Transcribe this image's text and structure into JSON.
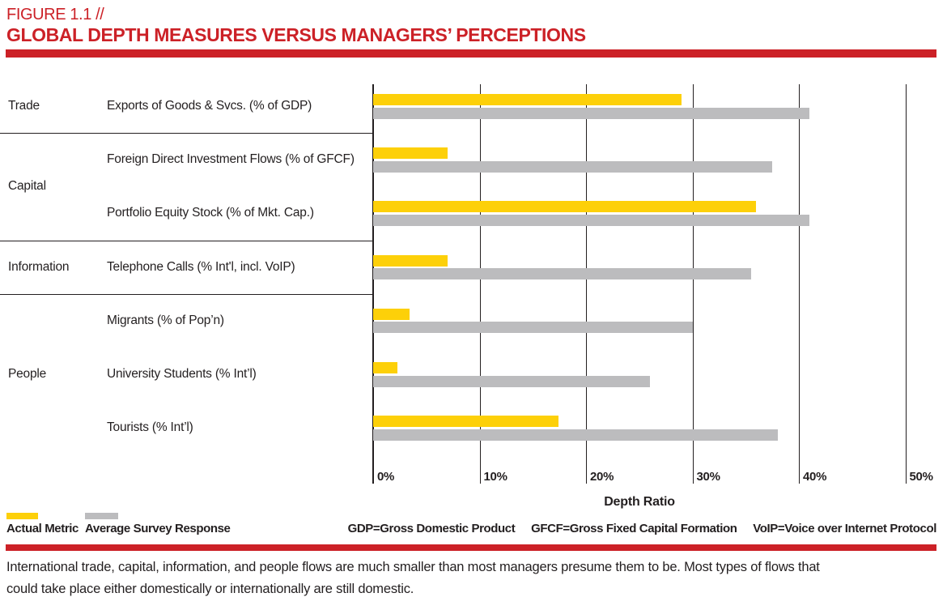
{
  "header": {
    "figure_label": "FIGURE 1.1 //",
    "title": "GLOBAL DEPTH MEASURES VERSUS MANAGERS’ PERCEPTIONS"
  },
  "chart_data": {
    "type": "bar",
    "orientation": "horizontal",
    "title": "Global Depth Measures versus Managers' Perceptions",
    "xlabel": "Depth Ratio",
    "xlim": [
      0,
      50
    ],
    "x_ticks": [
      "0%",
      "10%",
      "20%",
      "30%",
      "40%",
      "50%"
    ],
    "grid": true,
    "legend_position": "bottom-left",
    "series": [
      {
        "name": "Actual Metric",
        "color": "#fdd009"
      },
      {
        "name": "Average Survey Response",
        "color": "#bcbcbe"
      }
    ],
    "groups": [
      {
        "category": "Trade",
        "rows": [
          {
            "label": "Exports of Goods & Svcs. (% of GDP)",
            "actual": 29,
            "survey": 41
          }
        ]
      },
      {
        "category": "Capital",
        "rows": [
          {
            "label": "Foreign Direct Investment Flows (% of GFCF)",
            "actual": 7,
            "survey": 37.5
          },
          {
            "label": "Portfolio Equity Stock (% of Mkt. Cap.)",
            "actual": 36,
            "survey": 41
          }
        ]
      },
      {
        "category": "Information",
        "rows": [
          {
            "label": "Telephone Calls (% Int'l, incl. VoIP)",
            "actual": 7,
            "survey": 35.5
          }
        ]
      },
      {
        "category": "People",
        "rows": [
          {
            "label": "Migrants (% of Pop’n)",
            "actual": 3.4,
            "survey": 30
          },
          {
            "label": "University Students (% Int’l)",
            "actual": 2.3,
            "survey": 26
          },
          {
            "label": "Tourists (% Int’l)",
            "actual": 17.4,
            "survey": 38
          }
        ]
      }
    ]
  },
  "footnotes": [
    "GDP=Gross Domestic Product",
    "GFCF=Gross Fixed Capital Formation",
    "VoIP=Voice over Internet Protocol"
  ],
  "caption_lines": [
    "International trade, capital, information, and people flows are much smaller than most managers presume them to be. Most types of flows that",
    "could take place either domestically or internationally are still domestic."
  ],
  "colors": {
    "accent_red": "#cc2127",
    "bar_yellow": "#fdd009",
    "bar_gray": "#bcbcbe",
    "text": "#231f20"
  }
}
